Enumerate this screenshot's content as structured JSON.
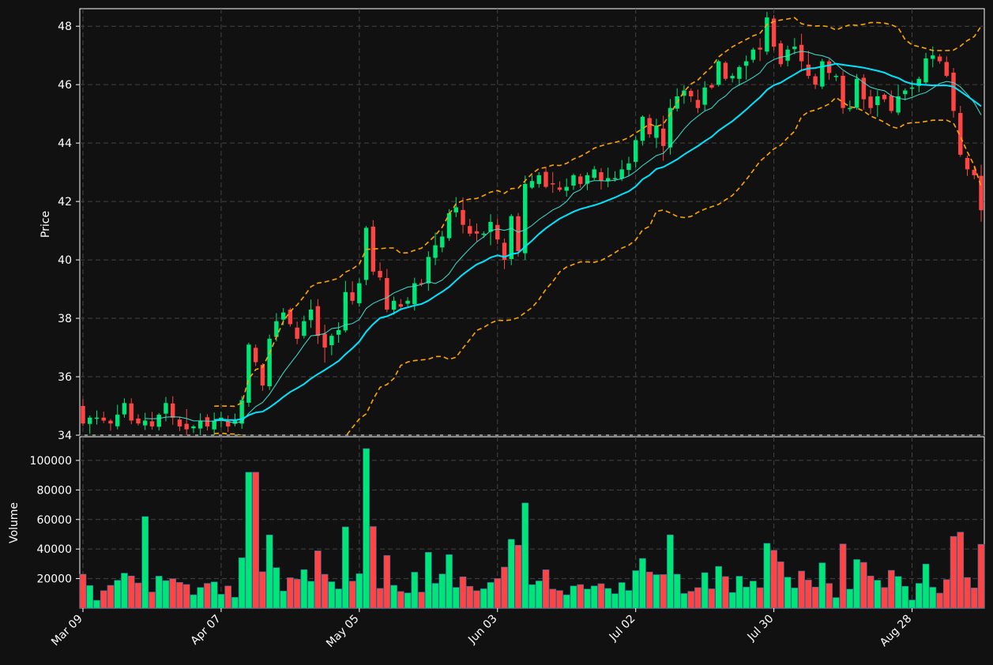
{
  "chart_data": {
    "type": "candlestick",
    "panels": [
      "price",
      "volume"
    ],
    "price_axis": {
      "label": "Price",
      "ylim": [
        34,
        48.6
      ],
      "ticks": [
        34,
        36,
        38,
        40,
        42,
        44,
        46,
        48
      ]
    },
    "volume_axis": {
      "label": "Volume",
      "ylim": [
        0,
        116000
      ],
      "ticks": [
        20000,
        40000,
        60000,
        80000,
        100000
      ]
    },
    "x_tick_labels": [
      "Mar 09",
      "Apr 07",
      "May 05",
      "Jun 03",
      "Jul 02",
      "Jul 30",
      "Aug 28"
    ],
    "x_tick_indices": [
      0,
      20,
      40,
      60,
      80,
      100,
      120
    ],
    "grid": true,
    "colors": {
      "up": "#00e676",
      "down": "#ff4444",
      "band": "#ffa500",
      "ma_fast": "#40e0d0",
      "ma_slow": "#00e5ff",
      "background": "#111111"
    },
    "overlays": [
      "20-period moving average",
      "50-period moving average",
      "Bollinger bands"
    ],
    "close": [
      34.4,
      34.6,
      34.6,
      34.5,
      34.4,
      34.7,
      35.1,
      34.5,
      34.4,
      34.5,
      34.3,
      34.7,
      35.1,
      34.6,
      34.3,
      34.2,
      34.3,
      34.5,
      34.3,
      34.5,
      34.6,
      34.3,
      34.5,
      35.2,
      37.1,
      36.5,
      35.7,
      37.3,
      37.9,
      38.2,
      37.8,
      37.3,
      37.9,
      38.3,
      37.4,
      37.0,
      37.4,
      37.6,
      38.9,
      38.6,
      39.2,
      41.1,
      39.6,
      39.4,
      38.3,
      38.6,
      38.4,
      38.6,
      39.2,
      39.2,
      40.1,
      40.5,
      40.8,
      41.6,
      41.8,
      41.2,
      40.9,
      40.9,
      40.9,
      41.3,
      40.7,
      40.0,
      41.5,
      40.3,
      42.6,
      42.7,
      42.9,
      42.5,
      42.6,
      42.4,
      42.5,
      42.9,
      42.6,
      42.9,
      43.1,
      42.7,
      42.8,
      42.8,
      43.1,
      43.3,
      44.1,
      44.9,
      44.3,
      44.6,
      43.9,
      45.2,
      45.6,
      45.8,
      45.6,
      45.2,
      45.9,
      45.9,
      46.8,
      46.2,
      46.3,
      46.6,
      46.8,
      47.2,
      47.2,
      48.3,
      47.3,
      46.7,
      47.2,
      47.3,
      46.8,
      46.3,
      46.0,
      46.8,
      46.4,
      46.3,
      45.2,
      45.2,
      46.2,
      45.5,
      45.2,
      45.6,
      45.5,
      45.1,
      45.6,
      45.8,
      45.9,
      46.2,
      46.9,
      47.0,
      46.8,
      46.3,
      45.1,
      43.6,
      43.1,
      42.9,
      41.7
    ]
  }
}
